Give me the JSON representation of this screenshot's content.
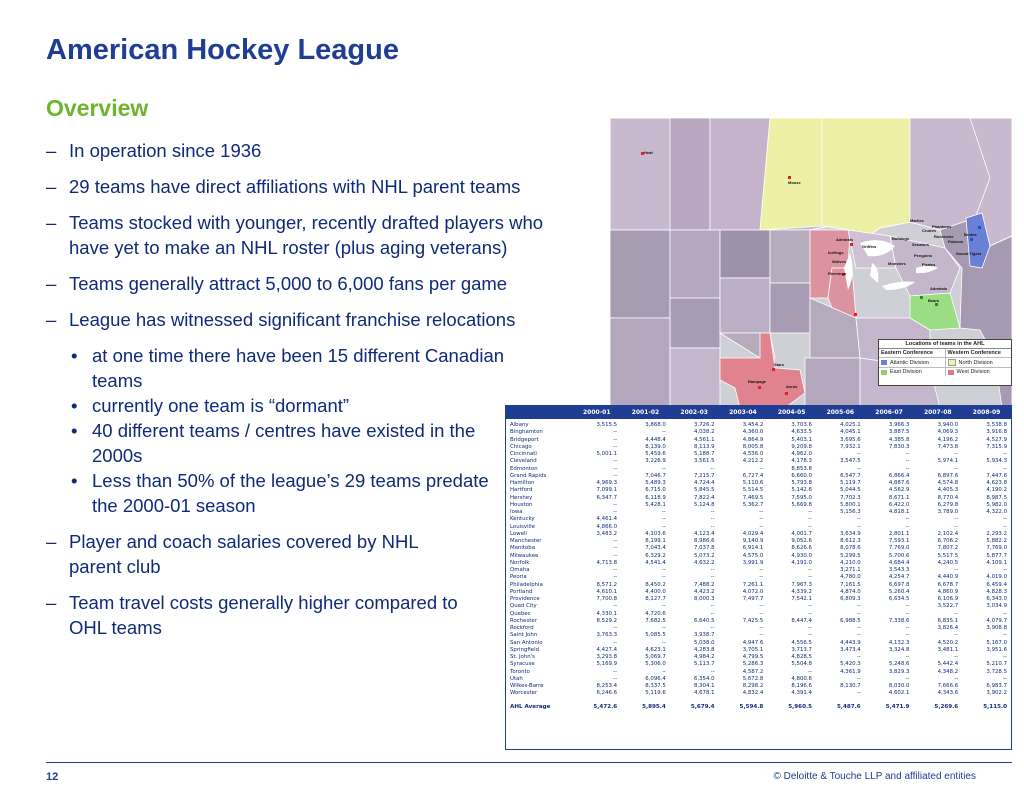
{
  "slide": {
    "title": "American Hockey League",
    "subtitle": "Overview",
    "page_number": "12",
    "copyright": "© Deloitte & Touche LLP and affiliated entities"
  },
  "bullets": [
    "In operation since 1936",
    "29 teams have direct affiliations with NHL parent teams",
    "Teams stocked with younger, recently drafted players who have yet to make an NHL roster (plus aging veterans)",
    "Teams generally attract 5,000 to 6,000 fans per game",
    "League has witnessed significant franchise relocations"
  ],
  "sub_bullets": [
    "at one time there have been 15 different Canadian teams",
    "currently one team is “dormant”",
    "40 different teams / centres have existed in the 2000s",
    "Less than 50% of the league’s 29 teams predate the 2000-01 season"
  ],
  "bullets_after": [
    "Player and coach salaries covered by NHL parent club",
    "Team travel costs generally higher compared to OHL teams"
  ],
  "map": {
    "legend_title": "Locations of teams in the AHL",
    "eastern_conference": "Eastern Conference",
    "western_conference": "Western Conference",
    "atlantic_division": "Atlantic Division",
    "north_division": "North Division",
    "east_division": "East Division",
    "west_division": "West Division",
    "colors": {
      "atlantic": "#6a7fd6",
      "north": "#f0f0a8",
      "east": "#8fd06a",
      "west": "#e07a86"
    },
    "labels": [
      "Heat",
      "Moose",
      "Admirals",
      "Griffins",
      "Bulldogs",
      "Crunch",
      "Marlies",
      "Phantoms",
      "Rochester",
      "Sound Tigers",
      "Bears",
      "Admirals",
      "Stars",
      "Rampage",
      "Aeros",
      "Rivermen",
      "IceHogs",
      "Wolves",
      "Monsters",
      "Penguins",
      "Pirates",
      "Senators",
      "Falcons",
      "Bruins"
    ]
  },
  "table": {
    "headers": [
      "",
      "2000-01",
      "2001-02",
      "2002-03",
      "2003-04",
      "2004-05",
      "2005-06",
      "2006-07",
      "2007-08",
      "2008-09"
    ],
    "rows": [
      [
        "Albany",
        "3,515.5",
        "3,868.0",
        "3,726.2",
        "3,454.2",
        "3,703.6",
        "4,025.1",
        "3,966.3",
        "3,940.0",
        "3,538.8"
      ],
      [
        "Binghamton",
        "--",
        "--",
        "4,038.2",
        "4,360.0",
        "4,633.5",
        "4,045.1",
        "3,887.5",
        "4,069.3",
        "3,916.8"
      ],
      [
        "Bridgeport",
        "--",
        "4,448.4",
        "4,561.1",
        "4,864.9",
        "5,403.1",
        "3,695.6",
        "4,385.8",
        "4,196.2",
        "4,527.9"
      ],
      [
        "Chicago",
        "--",
        "8,139.0",
        "8,113.9",
        "8,005.8",
        "9,209.8",
        "7,932.1",
        "7,830.3",
        "7,473.8",
        "7,315.9"
      ],
      [
        "Cincinnati",
        "5,001.1",
        "5,459.6",
        "5,188.7",
        "4,536.0",
        "4,962.0",
        "--",
        "--",
        "--",
        "--"
      ],
      [
        "Cleveland",
        "--",
        "3,226.9",
        "3,561.5",
        "4,212.2",
        "4,178.3",
        "3,547.5",
        "--",
        "5,974.1",
        "5,934.3"
      ],
      [
        "Edmonton",
        "--",
        "--",
        "--",
        "--",
        "8,853.8",
        "--",
        "--",
        "--",
        "--"
      ],
      [
        "Grand Rapids",
        "--",
        "7,046.7",
        "7,215.7",
        "6,727.4",
        "6,660.0",
        "6,547.7",
        "6,866.4",
        "6,897.6",
        "7,447.6"
      ],
      [
        "Hamilton",
        "4,969.3",
        "5,489.3",
        "4,724.4",
        "5,110.6",
        "5,793.8",
        "5,119.7",
        "4,887.6",
        "4,574.8",
        "4,623.8"
      ],
      [
        "Hartford",
        "7,099.1",
        "6,715.0",
        "5,845.5",
        "5,514.5",
        "5,142.6",
        "5,044.5",
        "4,562.9",
        "4,405.3",
        "4,190.2"
      ],
      [
        "Hershey",
        "6,347.7",
        "6,118.9",
        "7,822.4",
        "7,469.5",
        "7,595.0",
        "7,702.3",
        "8,671.1",
        "8,770.4",
        "8,987.5"
      ],
      [
        "Houston",
        "--",
        "5,428.1",
        "5,124.8",
        "5,362.7",
        "5,669.8",
        "5,800.1",
        "6,422.0",
        "6,279.8",
        "5,982.0"
      ],
      [
        "Iowa",
        "--",
        "--",
        "--",
        "--",
        "--",
        "5,156.3",
        "4,818.1",
        "3,789.0",
        "4,322.0"
      ],
      [
        "Kentucky",
        "4,461.4",
        "--",
        "--",
        "--",
        "--",
        "--",
        "--",
        "--",
        "--"
      ],
      [
        "Louisville",
        "4,866.0",
        "--",
        "--",
        "--",
        "--",
        "--",
        "--",
        "--",
        "--"
      ],
      [
        "Lowell",
        "3,483.2",
        "4,103.6",
        "4,123.4",
        "4,029.4",
        "4,001.7",
        "3,634.9",
        "2,801.1",
        "2,102.4",
        "2,293.2"
      ],
      [
        "Manchester",
        "--",
        "8,199.1",
        "8,986.6",
        "9,140.9",
        "9,052.6",
        "8,612.3",
        "7,593.1",
        "6,706.2",
        "5,882.2"
      ],
      [
        "Manitoba",
        "--",
        "7,043.4",
        "7,037.8",
        "6,914.1",
        "8,626.6",
        "8,078.6",
        "7,769.0",
        "7,807.2",
        "7,769.0"
      ],
      [
        "Milwaukee",
        "--",
        "6,329.2",
        "5,073.2",
        "4,575.0",
        "4,930.0",
        "5,299.5",
        "5,700.6",
        "5,517.5",
        "5,877.7"
      ],
      [
        "Norfolk",
        "4,713.8",
        "4,541.4",
        "4,632.2",
        "3,991.9",
        "4,191.0",
        "4,210.0",
        "4,684.4",
        "4,240.5",
        "4,109.1"
      ],
      [
        "Omaha",
        "--",
        "--",
        "--",
        "--",
        "--",
        "3,271.1",
        "3,543.3",
        "--",
        "--"
      ],
      [
        "Peoria",
        "--",
        "--",
        "--",
        "--",
        "--",
        "4,780.0",
        "4,254.7",
        "4,440.9",
        "4,019.0"
      ],
      [
        "Philadelphia",
        "8,571.2",
        "8,450.2",
        "7,488.2",
        "7,261.1",
        "7,967.3",
        "7,161.5",
        "6,697.8",
        "6,678.7",
        "6,459.4"
      ],
      [
        "Portland",
        "4,610.1",
        "4,400.0",
        "4,423.2",
        "4,072.0",
        "4,339.2",
        "4,874.0",
        "5,260.4",
        "4,860.9",
        "4,828.3"
      ],
      [
        "Providence",
        "7,700.8",
        "8,127.7",
        "8,000.3",
        "7,497.7",
        "7,542.1",
        "6,809.3",
        "6,634.5",
        "6,106.9",
        "6,343.0"
      ],
      [
        "Quad City",
        "--",
        "--",
        "--",
        "--",
        "--",
        "--",
        "--",
        "3,522.7",
        "3,034.9"
      ],
      [
        "Quebec",
        "4,330.1",
        "4,720.6",
        "--",
        "--",
        "--",
        "--",
        "--",
        "--",
        "--"
      ],
      [
        "Rochester",
        "8,529.2",
        "7,682.5",
        "6,640.5",
        "7,425.5",
        "8,447.4",
        "6,988.5",
        "7,338.6",
        "6,835.1",
        "4,079.7"
      ],
      [
        "Rockford",
        "--",
        "--",
        "--",
        "--",
        "--",
        "--",
        "--",
        "3,826.4",
        "3,908.8"
      ],
      [
        "Saint John",
        "3,763.3",
        "5,085.5",
        "3,938.7",
        "--",
        "--",
        "--",
        "--",
        "--",
        "--"
      ],
      [
        "San Antonio",
        "--",
        "--",
        "5,038.0",
        "4,947.6",
        "4,556.5",
        "4,443.9",
        "4,132.3",
        "4,520.2",
        "5,167.0"
      ],
      [
        "Springfield",
        "4,427.4",
        "4,623.1",
        "4,283.8",
        "3,705.1",
        "3,713.7",
        "3,473.4",
        "3,324.8",
        "3,481.1",
        "3,951.6"
      ],
      [
        "St. John's",
        "3,293.8",
        "5,069.7",
        "4,984.2",
        "4,799.5",
        "4,828.5",
        "--",
        "--",
        "--",
        "--"
      ],
      [
        "Syracuse",
        "5,169.9",
        "5,306.0",
        "5,113.7",
        "5,286.3",
        "5,504.8",
        "5,420.3",
        "5,248.6",
        "5,442.4",
        "5,210.7"
      ],
      [
        "Toronto",
        "--",
        "--",
        "--",
        "4,587.2",
        "--",
        "4,361.9",
        "3,829.3",
        "4,348.2",
        "3,728.5"
      ],
      [
        "Utah",
        "--",
        "6,096.4",
        "6,354.0",
        "5,672.8",
        "4,800.6",
        "--",
        "--",
        "--",
        "--"
      ],
      [
        "Wilkes-Barre",
        "8,253.4",
        "8,337.5",
        "8,304.1",
        "8,298.2",
        "8,196.6",
        "8,130.7",
        "8,030.0",
        "7,666.6",
        "6,983.7"
      ],
      [
        "Worcester",
        "6,246.6",
        "5,119.6",
        "4,678.1",
        "4,832.4",
        "4,391.4",
        "--",
        "4,602.1",
        "4,343.6",
        "3,902.2"
      ]
    ],
    "footer": [
      "AHL Average",
      "5,472.6",
      "5,895.4",
      "5,679.4",
      "5,594.8",
      "5,960.5",
      "5,487.6",
      "5,471.9",
      "5,269.6",
      "5,115.0"
    ]
  }
}
